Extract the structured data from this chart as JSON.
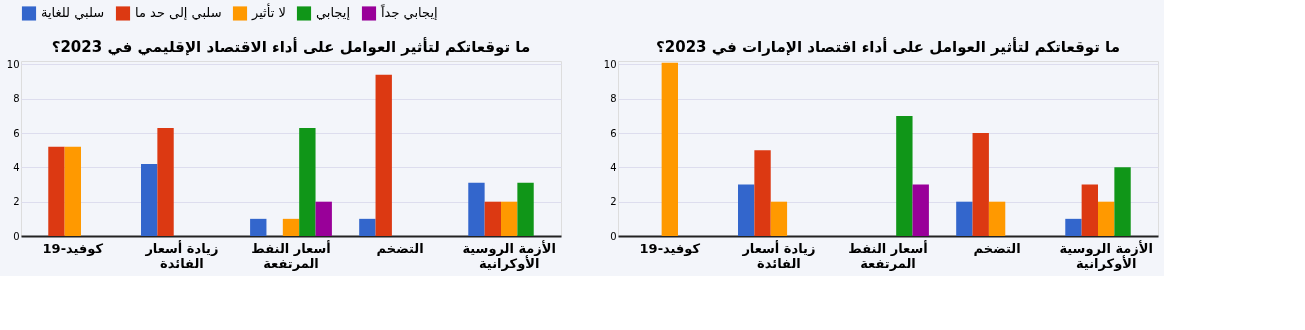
{
  "chart_data": [
    {
      "type": "bar",
      "title": "ما توقعاتكم لتأثير العوامل على أداء الاقتصاد الإقليمي في 2023؟",
      "categories": [
        "كوفيد-19",
        "زيادة أسعار الفائدة",
        "أسعار النفط المرتفعة",
        "التضخم",
        "الأزمة الروسية الأوكرانية"
      ],
      "series": [
        {
          "name": "سلبي للغاية",
          "color": "#3366cc",
          "values": [
            0,
            4.2,
            1,
            1,
            3.1
          ]
        },
        {
          "name": "سلبي إلى حد ما",
          "color": "#dc3912",
          "values": [
            5.2,
            6.3,
            null,
            9.4,
            2
          ]
        },
        {
          "name": "لا تأثير",
          "color": "#ff9900",
          "values": [
            5.2,
            null,
            1,
            null,
            2
          ]
        },
        {
          "name": "إيجابي",
          "color": "#109618",
          "values": [
            null,
            null,
            6.3,
            null,
            3.1
          ]
        },
        {
          "name": "إيجابي جداً",
          "color": "#990099",
          "values": [
            null,
            null,
            2,
            null,
            null
          ]
        }
      ],
      "ylim": [
        0,
        10.2
      ],
      "yticks": [
        0,
        2,
        4,
        6,
        8,
        10
      ],
      "grid": "y",
      "legend": "top"
    },
    {
      "type": "bar",
      "title": "ما توقعاتكم لتأثير العوامل على أداء اقتصاد الإمارات في 2023؟",
      "categories": [
        "كوفيد-19",
        "زيادة أسعار الفائدة",
        "أسعار النفط المرتفعة",
        "التضخم",
        "الأزمة الروسية الأوكرانية"
      ],
      "series": [
        {
          "name": "سلبي للغاية",
          "color": "#3366cc",
          "values": [
            0,
            3,
            null,
            2,
            1
          ]
        },
        {
          "name": "سلبي إلى حد ما",
          "color": "#dc3912",
          "values": [
            null,
            5,
            null,
            6,
            3
          ]
        },
        {
          "name": "لا تأثير",
          "color": "#ff9900",
          "values": [
            10.1,
            2,
            null,
            2,
            2
          ]
        },
        {
          "name": "إيجابي",
          "color": "#109618",
          "values": [
            null,
            null,
            7,
            null,
            4
          ]
        },
        {
          "name": "إيجابي جداً",
          "color": "#990099",
          "values": [
            null,
            null,
            3,
            null,
            null
          ]
        }
      ],
      "ylim": [
        0,
        10.2
      ],
      "yticks": [
        0,
        2,
        4,
        6,
        8,
        10
      ],
      "grid": "y",
      "legend": "top"
    }
  ]
}
